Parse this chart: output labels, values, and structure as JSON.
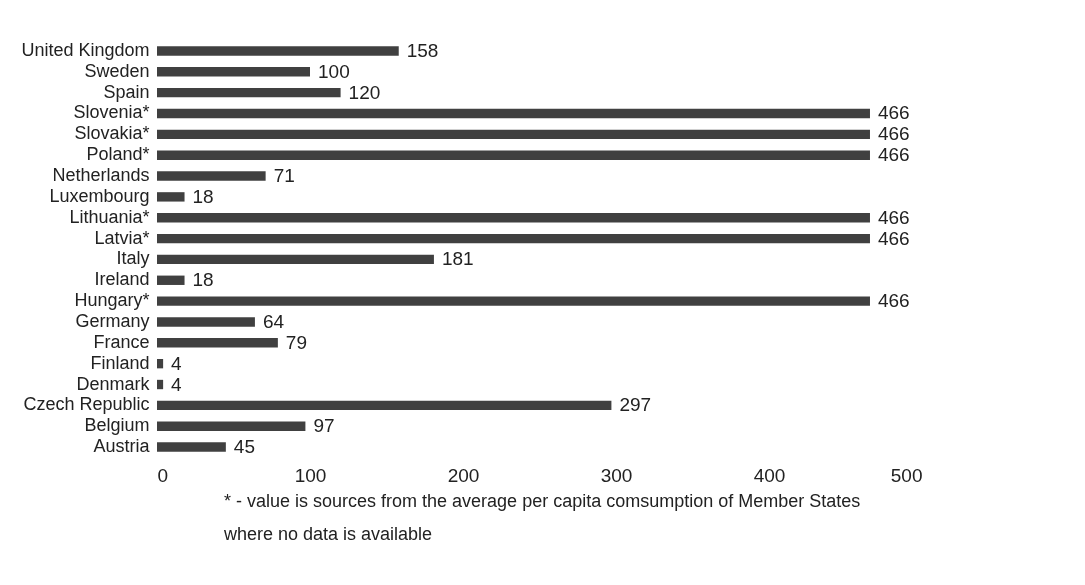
{
  "chart_data": {
    "type": "bar",
    "orientation": "horizontal",
    "categories": [
      "United Kingdom",
      "Sweden",
      "Spain",
      "Slovenia*",
      "Slovakia*",
      "Poland*",
      "Netherlands",
      "Luxembourg",
      "Lithuania*",
      "Latvia*",
      "Italy",
      "Ireland",
      "Hungary*",
      "Germany",
      "France",
      "Finland",
      "Denmark",
      "Czech Republic",
      "Belgium",
      "Austria"
    ],
    "values": [
      158,
      100,
      120,
      466,
      466,
      466,
      71,
      18,
      466,
      466,
      181,
      18,
      466,
      64,
      79,
      4,
      4,
      297,
      97,
      45
    ],
    "color": "#404040",
    "data_labels": true,
    "grid": false,
    "xlim": [
      0,
      500
    ],
    "xticks": [
      0,
      100,
      200,
      300,
      400,
      500
    ],
    "annotations": [
      "* - value is sources from the average per capita comsumption of Member States where no data is available"
    ]
  }
}
